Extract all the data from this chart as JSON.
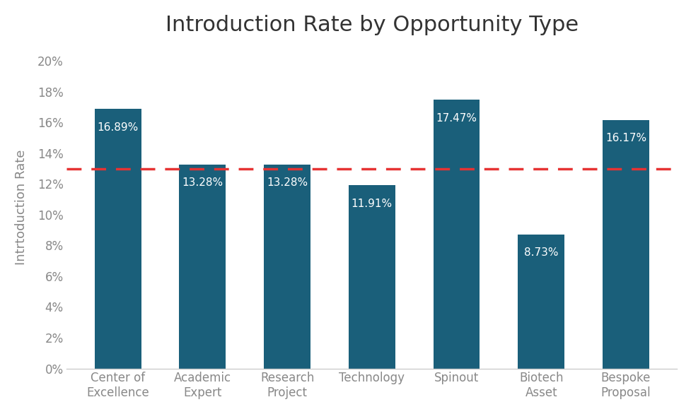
{
  "title": "Introduction Rate by Opportunity Type",
  "ylabel": "Intrtoduction Rate",
  "categories": [
    "Center of\nExcellence",
    "Academic\nExpert",
    "Research\nProject",
    "Technology",
    "Spinout",
    "Biotech\nAsset",
    "Bespoke\nProposal"
  ],
  "values": [
    16.89,
    13.28,
    13.28,
    11.91,
    17.47,
    8.73,
    16.17
  ],
  "bar_color": "#1a5f7a",
  "label_color": "#ffffff",
  "dashed_line_y": 13.0,
  "dashed_line_color": "#e63333",
  "ylim": [
    0,
    21
  ],
  "yticks": [
    0,
    2,
    4,
    6,
    8,
    10,
    12,
    14,
    16,
    18,
    20
  ],
  "background_color": "#ffffff",
  "title_fontsize": 22,
  "ylabel_fontsize": 13,
  "tick_fontsize": 12,
  "label_fontsize": 11,
  "tick_color": "#888888"
}
